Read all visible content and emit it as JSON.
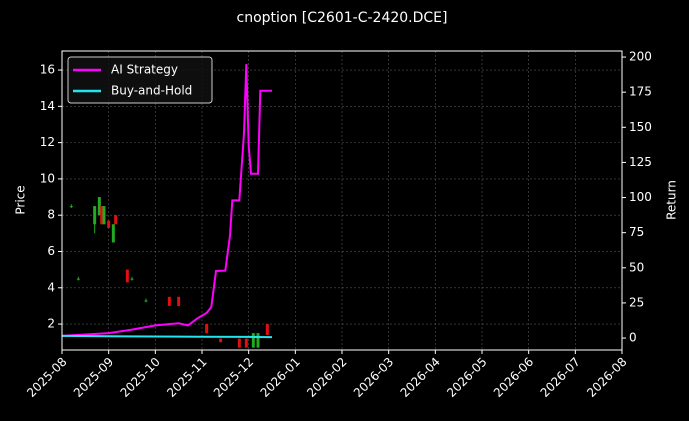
{
  "chart_data": {
    "type": "candlestick",
    "title": "cnoption [C2601-C-2420.DCE]",
    "ylabel": "Price",
    "y2label": "Return",
    "grid": true,
    "legend": "upper left",
    "xlim": [
      0,
      12
    ],
    "xticks": [
      {
        "value": 0,
        "label": "2025-08"
      },
      {
        "value": 1,
        "label": "2025-09"
      },
      {
        "value": 2,
        "label": "2025-10"
      },
      {
        "value": 3,
        "label": "2025-11"
      },
      {
        "value": 4,
        "label": "2025-12"
      },
      {
        "value": 5,
        "label": "2026-01"
      },
      {
        "value": 6,
        "label": "2026-02"
      },
      {
        "value": 7,
        "label": "2026-03"
      },
      {
        "value": 8,
        "label": "2026-04"
      },
      {
        "value": 9,
        "label": "2026-05"
      },
      {
        "value": 10,
        "label": "2026-06"
      },
      {
        "value": 11,
        "label": "2026-07"
      },
      {
        "value": 12,
        "label": "2026-08"
      }
    ],
    "ylim": [
      0.57,
      17.05
    ],
    "yticks": [
      2,
      4,
      6,
      8,
      10,
      12,
      14,
      16
    ],
    "y2lim": [
      -8.5,
      204.3
    ],
    "y2ticks": [
      0,
      25,
      50,
      75,
      100,
      125,
      150,
      175,
      200
    ],
    "candles": {
      "up_color": "#22aa22",
      "down_color": "#e01010",
      "x": [
        0.2,
        0.35,
        0.7,
        0.8,
        0.85,
        0.9,
        1.0,
        1.1,
        1.15,
        1.4,
        1.5,
        1.8,
        2.3,
        2.5,
        3.1,
        3.4,
        3.8,
        3.95,
        4.1,
        4.2,
        4.4
      ],
      "open": [
        8.5,
        4.5,
        7.5,
        8.0,
        8.5,
        7.5,
        7.7,
        6.5,
        8.0,
        5.0,
        4.5,
        3.3,
        3.5,
        3.5,
        2.0,
        1.2,
        1.2,
        1.2,
        0.7,
        0.7,
        2.0
      ],
      "high": [
        8.6,
        4.6,
        8.5,
        9.0,
        8.5,
        8.5,
        7.7,
        7.5,
        8.0,
        5.0,
        4.6,
        3.4,
        3.5,
        3.5,
        2.0,
        1.2,
        1.2,
        1.2,
        1.5,
        1.5,
        2.0
      ],
      "low": [
        8.4,
        4.4,
        7.0,
        8.0,
        7.5,
        7.5,
        7.3,
        6.5,
        7.5,
        4.3,
        4.4,
        3.2,
        3.0,
        3.0,
        1.5,
        1.0,
        0.7,
        0.7,
        0.7,
        0.7,
        1.4
      ],
      "close": [
        8.5,
        4.5,
        8.5,
        9.0,
        7.5,
        8.5,
        7.3,
        7.5,
        7.5,
        4.3,
        4.5,
        3.3,
        3.0,
        3.0,
        1.5,
        1.0,
        0.7,
        0.7,
        1.5,
        1.5,
        1.4
      ]
    },
    "series": [
      {
        "name": "AI Strategy",
        "color": "#ff00ff",
        "axis": "y2",
        "x": [
          0,
          1.0,
          1.5,
          2.0,
          2.5,
          2.7,
          2.9,
          3.1,
          3.2,
          3.3,
          3.5,
          3.6,
          3.65,
          3.8,
          3.9,
          3.95,
          4.0,
          4.05,
          4.2,
          4.25,
          4.5
        ],
        "values": [
          1.5,
          3.5,
          6,
          9,
          10.5,
          9,
          14,
          18,
          22,
          47.7,
          48,
          73,
          98,
          98,
          146,
          195,
          137,
          117,
          117,
          176,
          176
        ]
      },
      {
        "name": "Buy-and-Hold",
        "color": "#22e5ee",
        "axis": "y2",
        "x": [
          0,
          1.0,
          2.0,
          3.0,
          4.0,
          4.5
        ],
        "values": [
          1.5,
          1.3,
          1.1,
          1.0,
          0.8,
          0.7
        ]
      }
    ]
  }
}
